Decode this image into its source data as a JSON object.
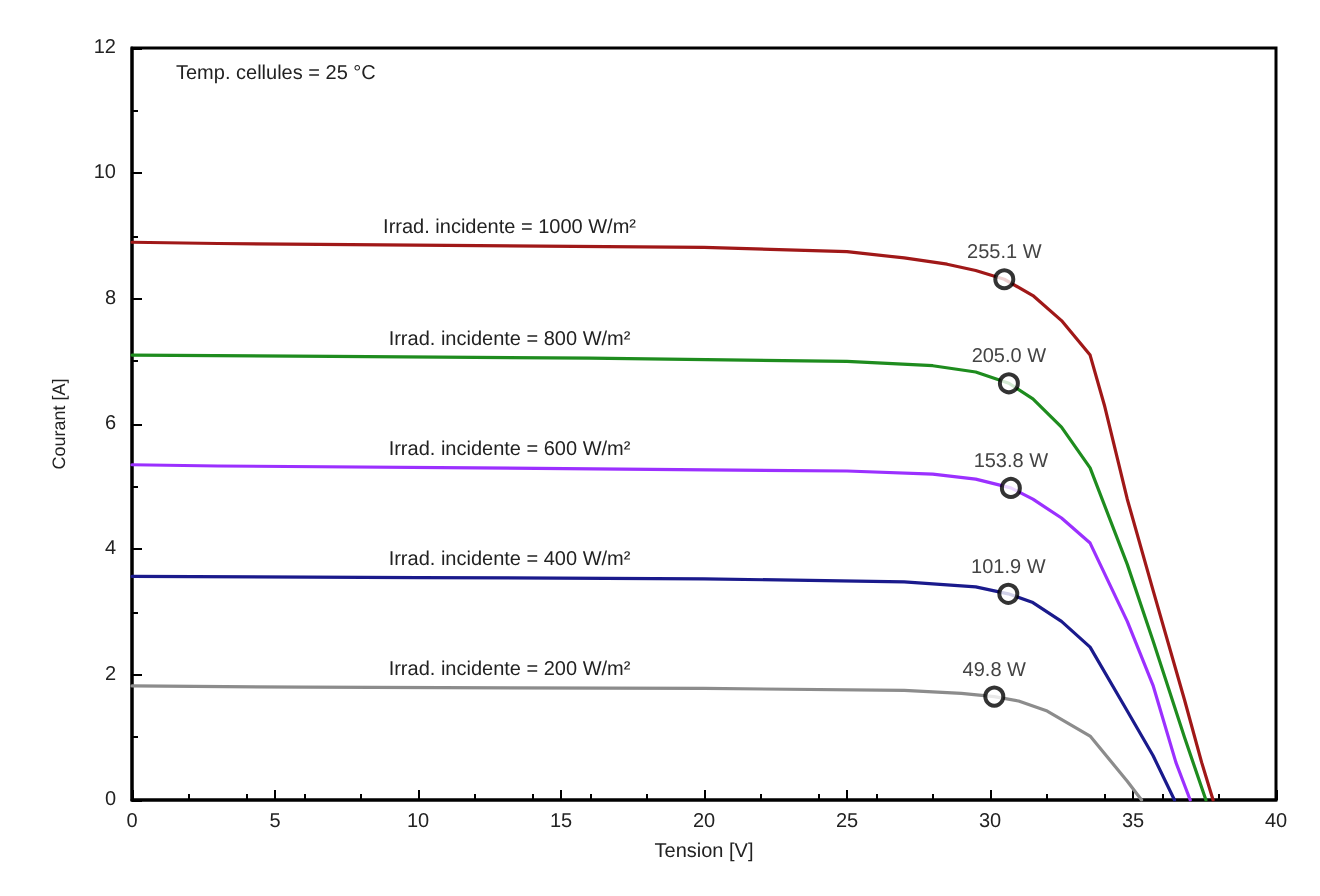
{
  "chart_data": {
    "type": "line",
    "xlabel": "Tension [V]",
    "ylabel": "Courant [A]",
    "annotations": [
      "Temp. cellules = 25 °C",
      {
        "text": "255.1 W",
        "x": 30.5,
        "y": 8.31
      },
      {
        "text": "205.0 W",
        "x": 30.66,
        "y": 6.65
      },
      {
        "text": "153.8 W",
        "x": 30.73,
        "y": 4.98
      },
      {
        "text": "101.9 W",
        "x": 30.64,
        "y": 3.29
      },
      {
        "text": "49.8 W",
        "x": 30.15,
        "y": 1.65
      }
    ],
    "xlim": [
      0,
      40
    ],
    "xticks": [
      0,
      5,
      10,
      15,
      20,
      25,
      30,
      35,
      40
    ],
    "ylim": [
      0,
      12
    ],
    "yticks": [
      0,
      2,
      4,
      6,
      8,
      10,
      12
    ],
    "grid": false,
    "legend": false,
    "marker": "none",
    "line_style": "solid",
    "series": [
      {
        "name": "Irrad. incidente = 1000 W/m²",
        "color": "#a01818",
        "x": [
          0,
          3,
          11,
          20,
          25,
          27,
          28.5,
          29.5,
          30.5,
          31.5,
          32.5,
          33.5,
          34,
          34.8,
          35.7,
          36.8,
          37.4,
          37.8
        ],
        "values": [
          8.9,
          8.88,
          8.85,
          8.82,
          8.75,
          8.65,
          8.55,
          8.45,
          8.31,
          8.05,
          7.65,
          7.1,
          6.3,
          4.8,
          3.35,
          1.6,
          0.6,
          0
        ]
      },
      {
        "name": "Irrad. incidente = 800 W/m²",
        "color": "#1e8c1e",
        "x": [
          0,
          7,
          16,
          25,
          28,
          29.5,
          30.66,
          31.5,
          32.5,
          33.5,
          34.8,
          35.7,
          36.8,
          37.55
        ],
        "values": [
          7.1,
          7.08,
          7.05,
          7.0,
          6.93,
          6.83,
          6.65,
          6.4,
          5.95,
          5.3,
          3.76,
          2.54,
          1.0,
          0
        ]
      },
      {
        "name": "Irrad. incidente = 600 W/m²",
        "color": "#9b30ff",
        "x": [
          0,
          3,
          12,
          25,
          28,
          29.5,
          30.73,
          31.5,
          32.5,
          33.5,
          34.8,
          35.7,
          36.5,
          37.0
        ],
        "values": [
          5.35,
          5.33,
          5.3,
          5.25,
          5.2,
          5.12,
          4.98,
          4.8,
          4.5,
          4.1,
          2.85,
          1.83,
          0.6,
          0
        ]
      },
      {
        "name": "Irrad. incidente = 400 W/m²",
        "color": "#1a1a8c",
        "x": [
          0,
          10,
          20,
          27,
          29.5,
          30.64,
          31.5,
          32.5,
          33.5,
          34.8,
          35.7,
          36.45
        ],
        "values": [
          3.57,
          3.55,
          3.53,
          3.48,
          3.4,
          3.29,
          3.15,
          2.85,
          2.44,
          1.42,
          0.71,
          0
        ]
      },
      {
        "name": "Irrad. incidente = 200 W/m²",
        "color": "#8c8c8c",
        "x": [
          0,
          6,
          20,
          27,
          29,
          30.15,
          31,
          32,
          33.5,
          34.8,
          35.3
        ],
        "values": [
          1.82,
          1.8,
          1.78,
          1.75,
          1.7,
          1.65,
          1.58,
          1.42,
          1.02,
          0.3,
          0
        ]
      },
      {
        "type": "scatter",
        "marker": "circle",
        "color": "#000000",
        "x": [
          30.5,
          30.66,
          30.73,
          30.64,
          30.15
        ],
        "values": [
          8.31,
          6.65,
          4.98,
          3.29,
          1.65
        ]
      }
    ]
  }
}
